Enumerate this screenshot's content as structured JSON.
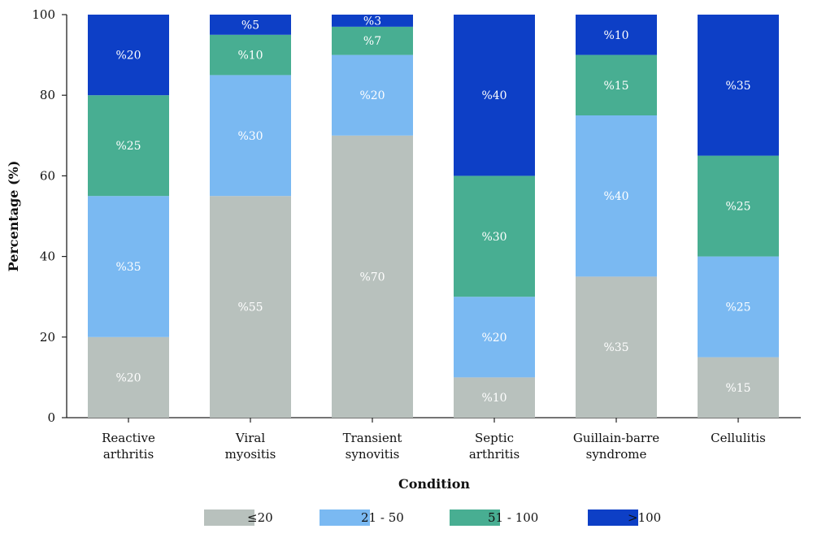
{
  "chart_data": {
    "type": "bar",
    "stacked": true,
    "xlabel": "Condition",
    "ylabel": "Percentage (%)",
    "ylim": [
      0,
      100
    ],
    "yticks": [
      0,
      20,
      40,
      60,
      80,
      100
    ],
    "grid": false,
    "legend_position": "bottom",
    "categories": [
      [
        "Reactive",
        "arthritis"
      ],
      [
        "Viral",
        "myositis"
      ],
      [
        "Transient",
        "synovitis"
      ],
      [
        "Septic",
        "arthritis"
      ],
      [
        "Guillain-barre",
        "syndrome"
      ],
      [
        "Cellulitis"
      ]
    ],
    "series": [
      {
        "name": "≤20",
        "color": "#b8c1bd",
        "values": [
          20,
          55,
          70,
          10,
          35,
          15
        ],
        "labels": [
          "%20",
          "%55",
          "%70",
          "%10",
          "%35",
          "%15"
        ]
      },
      {
        "name": "21 - 50",
        "color": "#7ab9f2",
        "values": [
          35,
          30,
          20,
          20,
          40,
          25
        ],
        "labels": [
          "%35",
          "%30",
          "%20",
          "%20",
          "%40",
          "%25"
        ]
      },
      {
        "name": "51 - 100",
        "color": "#48ae92",
        "values": [
          25,
          10,
          7,
          30,
          15,
          25
        ],
        "labels": [
          "%25",
          "%10",
          "%7",
          "%30",
          "%15",
          "%25"
        ]
      },
      {
        "name": ">100",
        "color": "#0d3fc6",
        "values": [
          20,
          5,
          3,
          40,
          10,
          35
        ],
        "labels": [
          "%20",
          "%5",
          "%3",
          "%40",
          "%10",
          "%35"
        ]
      }
    ]
  }
}
